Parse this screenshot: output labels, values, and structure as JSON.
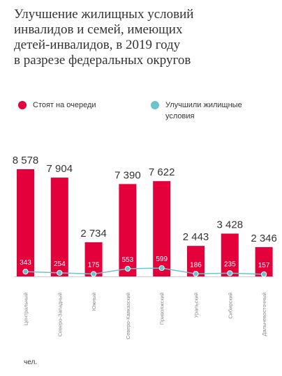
{
  "title_lines": [
    "Улучшение жилищных условий",
    "инвалидов и семей, имеющих",
    "детей-инвалидов, в 2019 году",
    "в разрезе федеральных округов"
  ],
  "unit": "чел.",
  "colors": {
    "bar": "#e4003a",
    "line": "#6cc3c9"
  },
  "chart_data": {
    "type": "bar",
    "categories": [
      "Центральный",
      "Северо-Западный",
      "Южный",
      "Северо-Кавказский",
      "Приволжский",
      "Уральский",
      "Сибирский",
      "Дальневосточный"
    ],
    "series": [
      {
        "name": "Стоят на очереди",
        "type": "bar",
        "values": [
          8578,
          7904,
          2734,
          7390,
          7622,
          2443,
          3428,
          2346
        ],
        "labels": [
          "8 578",
          "7 904",
          "2 734",
          "7 390",
          "7 622",
          "2 443",
          "3 428",
          "2 346"
        ]
      },
      {
        "name": "Улучшили жилищные условия",
        "type": "line",
        "values": [
          343,
          254,
          175,
          553,
          599,
          186,
          235,
          157
        ],
        "labels": [
          "343",
          "254",
          "175",
          "553",
          "599",
          "186",
          "235",
          "157"
        ]
      }
    ],
    "ylim": [
      0,
      8578
    ],
    "grid": false,
    "legend": "top"
  }
}
